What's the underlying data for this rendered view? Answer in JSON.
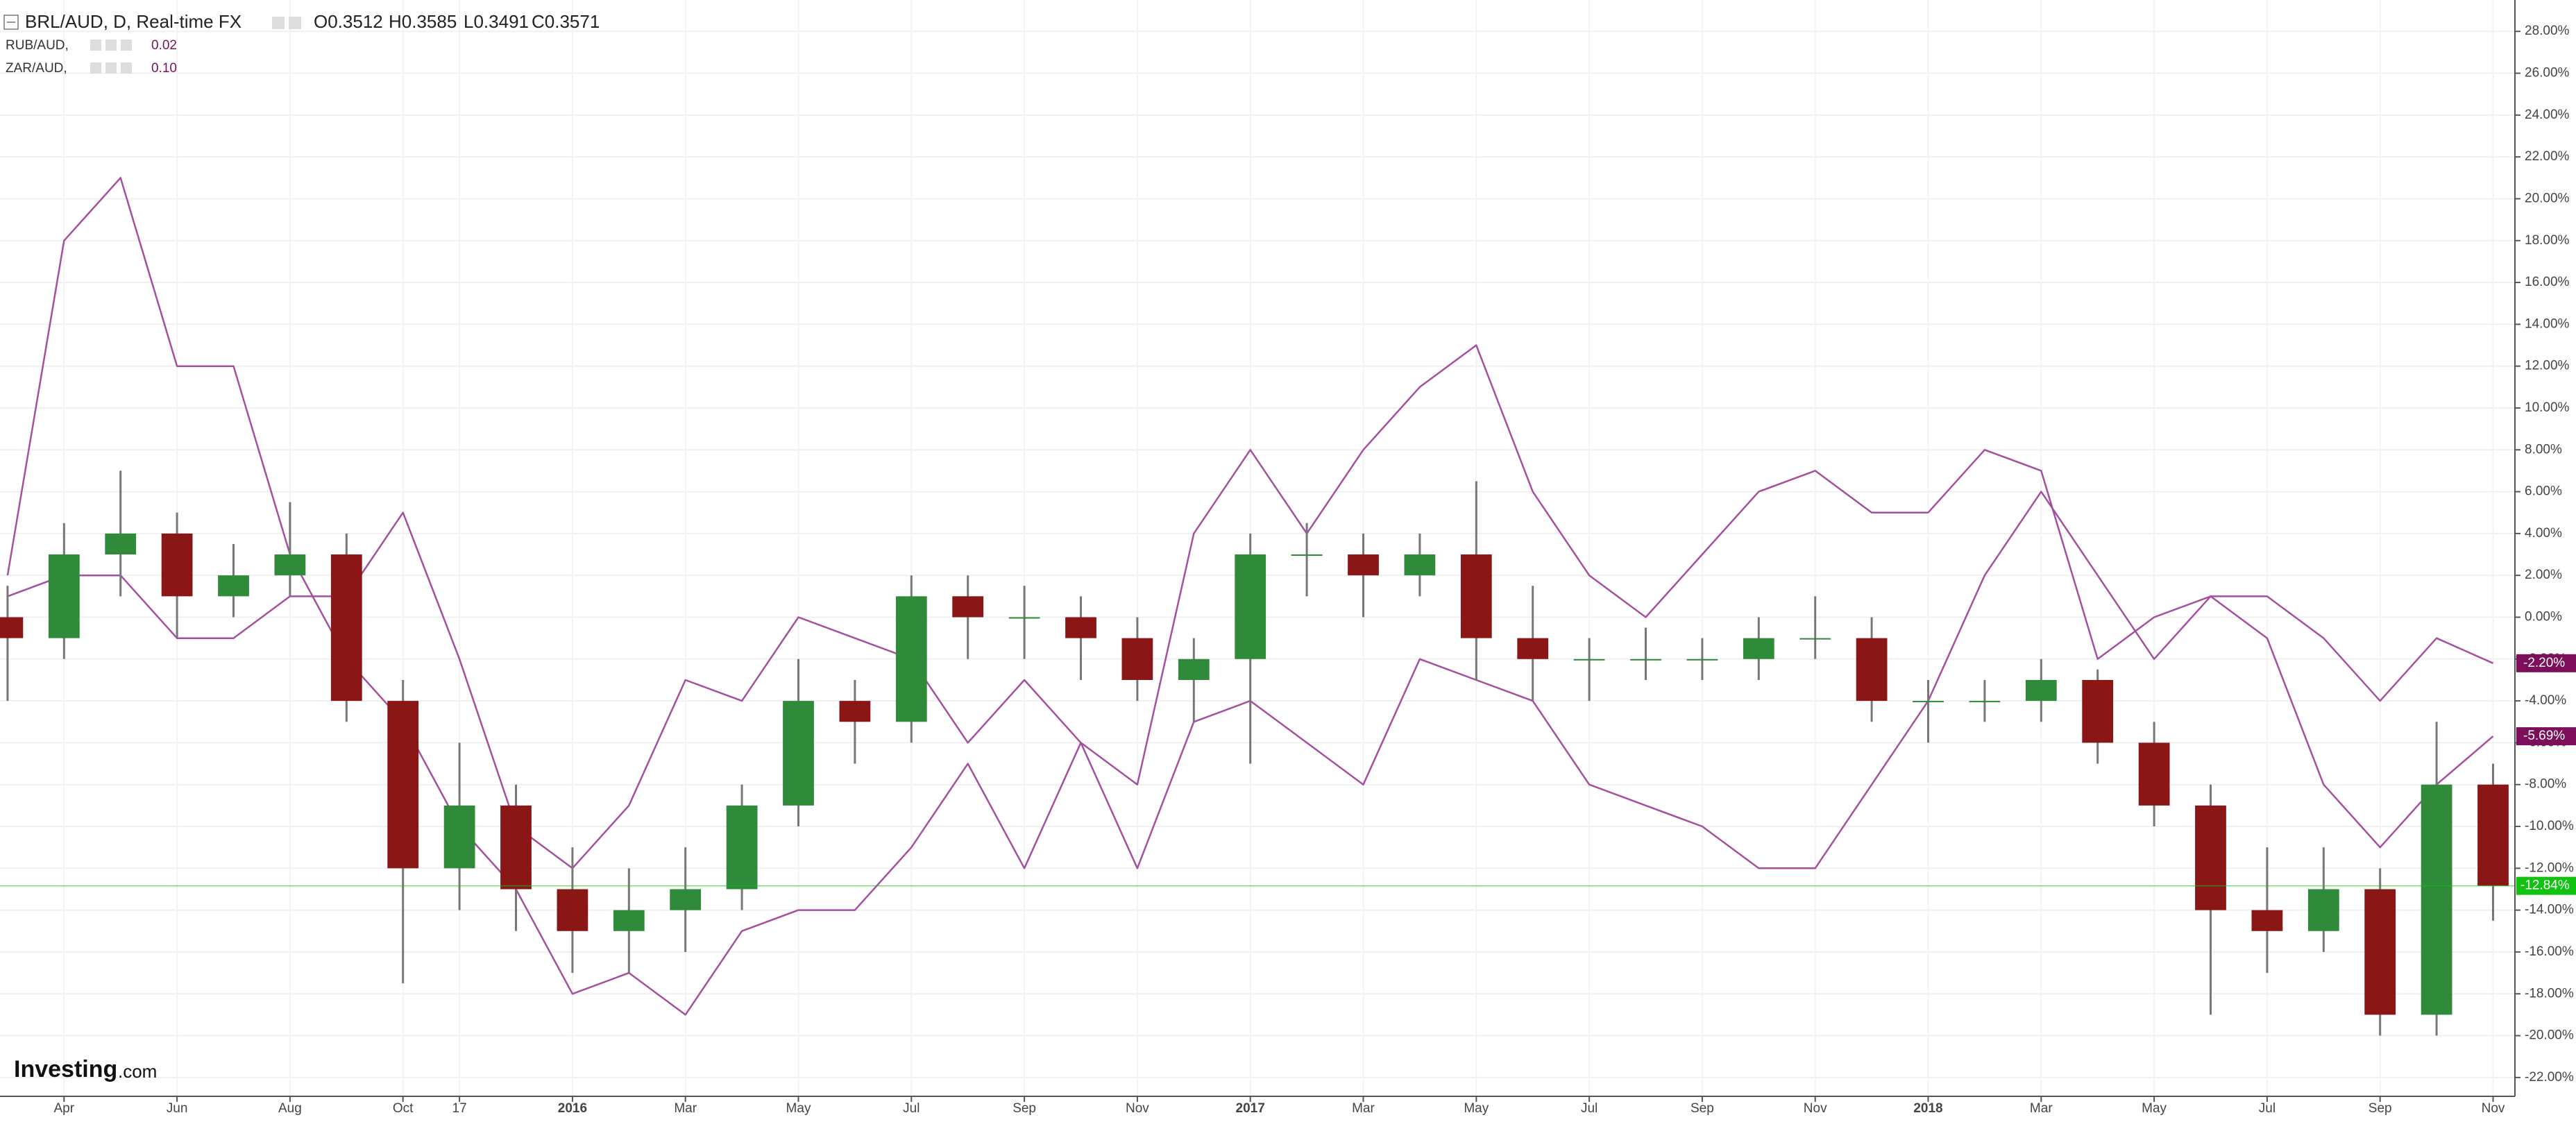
{
  "chart_data": {
    "type": "candlestick",
    "title": "BRL/AUD, D, Real-time FX",
    "ohlc_labels": [
      "O0.3512",
      "H0.3585",
      "L0.3491",
      "C0.3571"
    ],
    "categories": [
      null,
      "Apr",
      null,
      "Jun",
      null,
      "Aug",
      null,
      "Oct",
      "17",
      null,
      "2016",
      null,
      "Mar",
      null,
      "May",
      null,
      "Jul",
      null,
      "Sep",
      null,
      "Nov",
      null,
      "2017",
      null,
      "Mar",
      null,
      "May",
      null,
      "Jul",
      null,
      "Sep",
      null,
      "Nov",
      null,
      "2018",
      null,
      "Mar",
      null,
      "May",
      null,
      "Jul",
      null,
      "Sep",
      null,
      "Nov"
    ],
    "open": [
      0,
      -1,
      3,
      4,
      1,
      2,
      3,
      -4,
      -12,
      -9,
      -13,
      -15,
      -14,
      -13,
      -9,
      -4,
      -5,
      1,
      0,
      0,
      -1,
      -3,
      -2,
      3,
      3,
      2,
      3,
      -1,
      -2,
      -2,
      -2,
      -2,
      -1,
      -1,
      -4,
      -4,
      -4,
      -3,
      -6,
      -9,
      -14,
      -15,
      -13,
      -19,
      -8
    ],
    "high": [
      1.5,
      4.5,
      7,
      5,
      3.5,
      5.5,
      4,
      -3,
      -6,
      -8,
      -11,
      -12,
      -11,
      -8,
      -2,
      -3,
      2,
      2,
      1.5,
      1,
      0,
      -1,
      4,
      4.5,
      4,
      4,
      6.5,
      1.5,
      -1,
      -0.5,
      -1,
      0,
      1,
      0,
      -3,
      -3,
      -2,
      -2.5,
      -5,
      -8,
      -11,
      -11,
      -12,
      -5,
      -7
    ],
    "low": [
      -4,
      -2,
      1,
      -1,
      0,
      1,
      -5,
      -17.5,
      -14,
      -15,
      -17,
      -17,
      -16,
      -14,
      -10,
      -7,
      -6,
      -2,
      -2,
      -3,
      -4,
      -5,
      -7,
      1,
      0,
      1,
      -3,
      -4,
      -4,
      -3,
      -3,
      -3,
      -2,
      -5,
      -6,
      -5,
      -5,
      -7,
      -10,
      -19,
      -17,
      -16,
      -20,
      -20,
      -14.5
    ],
    "close": [
      -1,
      3,
      4,
      1,
      2,
      3,
      -4,
      -12,
      -9,
      -13,
      -15,
      -14,
      -13,
      -9,
      -4,
      -5,
      1,
      0,
      0,
      -1,
      -3,
      -2,
      3,
      3,
      2,
      3,
      -1,
      -2,
      -2,
      -2,
      -2,
      -1,
      -1,
      -4,
      -4,
      -4,
      -3,
      -6,
      -9,
      -14,
      -15,
      -13,
      -19,
      -8,
      -12.84
    ],
    "up_color": "#2f8a3a",
    "down_color": "#8b1616",
    "wick_color": "#777777",
    "last_label": {
      "value": -12.84,
      "label": "-12.84%"
    },
    "last_color": "#12c212",
    "series": [
      {
        "name": "RUB/AUD,",
        "legend_value": "0.02",
        "color": "#a4509f",
        "label_color": "#7d0f5a",
        "last_label": {
          "value": -2.2,
          "label": "-2.20%"
        },
        "values": [
          2,
          18,
          21,
          12,
          12,
          3,
          -2,
          -5,
          -10,
          -13,
          -18,
          -17,
          -19,
          -15,
          -14,
          -14,
          -11,
          -7,
          -12,
          -6,
          -12,
          -5,
          -4,
          -6,
          -8,
          -2,
          -3,
          -4,
          -8,
          -9,
          -10,
          -12,
          -12,
          -8,
          -4,
          2,
          6,
          2,
          -2,
          1,
          1,
          -1,
          -4,
          -1,
          -2.2
        ]
      },
      {
        "name": "ZAR/AUD,",
        "legend_value": "0.10",
        "color": "#a4509f",
        "label_color": "#7d0f5a",
        "last_label": {
          "value": -5.69,
          "label": "-5.69%"
        },
        "values": [
          1,
          2,
          2,
          -1,
          -1,
          1,
          1,
          5,
          -2,
          -10,
          -12,
          -9,
          -3,
          -4,
          0,
          -1,
          -2,
          -6,
          -3,
          -6,
          -8,
          4,
          8,
          4,
          8,
          11,
          13,
          6,
          2,
          0,
          3,
          6,
          7,
          5,
          5,
          8,
          7,
          -2,
          0,
          1,
          -1,
          -8,
          -11,
          -8,
          -5.69
        ]
      }
    ],
    "ylim": [
      -22.9,
      29.5
    ],
    "yticks": [
      {
        "value": 28,
        "label": "28.00%"
      },
      {
        "value": 26,
        "label": "26.00%"
      },
      {
        "value": 24,
        "label": "24.00%"
      },
      {
        "value": 22,
        "label": "22.00%"
      },
      {
        "value": 20,
        "label": "20.00%"
      },
      {
        "value": 18,
        "label": "18.00%"
      },
      {
        "value": 16,
        "label": "16.00%"
      },
      {
        "value": 14,
        "label": "14.00%"
      },
      {
        "value": 12,
        "label": "12.00%"
      },
      {
        "value": 10,
        "label": "10.00%"
      },
      {
        "value": 8,
        "label": "8.00%"
      },
      {
        "value": 6,
        "label": "6.00%"
      },
      {
        "value": 4,
        "label": "4.00%"
      },
      {
        "value": 2,
        "label": "2.00%"
      },
      {
        "value": 0,
        "label": "0.00%"
      },
      {
        "value": -2,
        "label": "-2.00%"
      },
      {
        "value": -4,
        "label": "-4.00%"
      },
      {
        "value": -6,
        "label": "-6.00%"
      },
      {
        "value": -8,
        "label": "-8.00%"
      },
      {
        "value": -10,
        "label": "-10.00%"
      },
      {
        "value": -12,
        "label": "-12.00%"
      },
      {
        "value": -14,
        "label": "-14.00%"
      },
      {
        "value": -16,
        "label": "-16.00%"
      },
      {
        "value": -18,
        "label": "-18.00%"
      },
      {
        "value": -20,
        "label": "-20.00%"
      },
      {
        "value": -22,
        "label": "-22.00%"
      }
    ],
    "grid": true
  },
  "logo": {
    "brand": "Investing",
    "suffix": ".com"
  }
}
